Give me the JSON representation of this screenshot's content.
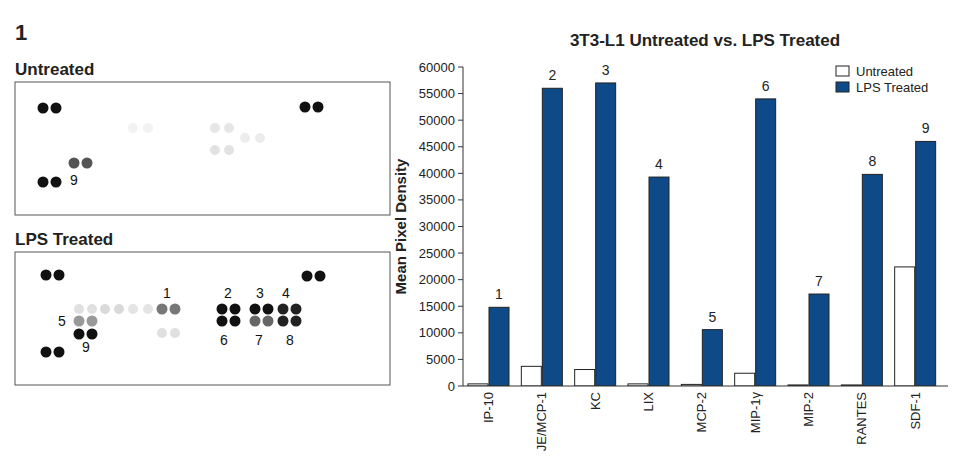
{
  "figure_label": "1",
  "blots": [
    {
      "title": "Untreated",
      "labels": [
        "9"
      ]
    },
    {
      "title": "LPS Treated",
      "labels": [
        "1",
        "2",
        "3",
        "4",
        "5",
        "6",
        "7",
        "8",
        "9"
      ]
    }
  ],
  "chart_data": {
    "type": "bar",
    "title": "3T3-L1 Untreated vs. LPS Treated",
    "y_label": "Mean Pixel Density",
    "categories": [
      "IP-10",
      "JE/MCP-1",
      "KC",
      "LIX",
      "MCP-2",
      "MIP-1γ",
      "MIP-2",
      "RANTES",
      "SDF-1"
    ],
    "series": [
      {
        "name": "Untreated",
        "color": "#ffffff",
        "values": [
          400,
          3700,
          3100,
          400,
          300,
          2400,
          200,
          200,
          22400
        ]
      },
      {
        "name": "LPS Treated",
        "color": "#0e4a87",
        "values": [
          14800,
          56000,
          57000,
          39300,
          10600,
          54000,
          17300,
          39800,
          46000
        ]
      }
    ],
    "annotations": [
      "1",
      "2",
      "3",
      "4",
      "5",
      "6",
      "7",
      "8",
      "9"
    ],
    "ylim": [
      0,
      60000
    ],
    "yticks": [
      0,
      5000,
      10000,
      15000,
      20000,
      25000,
      30000,
      35000,
      40000,
      45000,
      50000,
      55000,
      60000
    ],
    "grid": false,
    "legend": "top-right"
  }
}
